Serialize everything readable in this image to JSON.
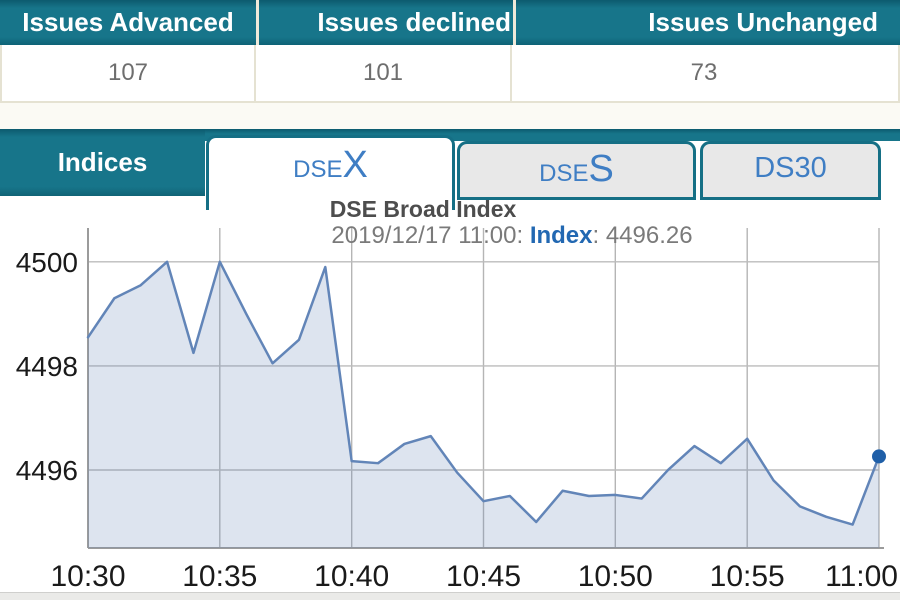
{
  "summary_table": {
    "columns": [
      {
        "header": "Issues Advanced",
        "value": "107"
      },
      {
        "header": "Issues declined",
        "value": "101"
      },
      {
        "header": "Issues Unchanged",
        "value": "73"
      }
    ]
  },
  "indices_panel": {
    "label": "Indices",
    "tabs": [
      {
        "name": "DSEX",
        "prefix": "DSE",
        "suffix": "X",
        "active": true
      },
      {
        "name": "DSES",
        "prefix": "DSE",
        "suffix": "S",
        "active": false
      },
      {
        "name": "DS30",
        "label": "DS30",
        "active": false
      }
    ]
  },
  "chart": {
    "title": "DSE Broad Index",
    "subtitle_prefix": "2019/12/17 11:00: ",
    "subtitle_label": "Index",
    "subtitle_rest": ": 4496.26"
  },
  "chart_data": {
    "type": "area",
    "title": "DSE Broad Index",
    "subtitle": "2019/12/17 11:00: Index: 4496.26",
    "x": [
      "10:30",
      "10:31",
      "10:32",
      "10:33",
      "10:34",
      "10:35",
      "10:36",
      "10:37",
      "10:38",
      "10:39",
      "10:40",
      "10:41",
      "10:42",
      "10:43",
      "10:44",
      "10:45",
      "10:46",
      "10:47",
      "10:48",
      "10:49",
      "10:50",
      "10:51",
      "10:52",
      "10:53",
      "10:54",
      "10:55",
      "10:56",
      "10:57",
      "10:58",
      "10:59",
      "11:00"
    ],
    "values": [
      4498.55,
      4499.3,
      4499.55,
      4500.0,
      4498.25,
      4500.0,
      4499.0,
      4498.05,
      4498.5,
      4499.9,
      4496.17,
      4496.13,
      4496.5,
      4496.65,
      4495.95,
      4495.4,
      4495.5,
      4495.0,
      4495.6,
      4495.5,
      4495.52,
      4495.45,
      4496.0,
      4496.46,
      4496.13,
      4496.6,
      4495.8,
      4495.3,
      4495.1,
      4494.95,
      4496.26
    ],
    "xticks": [
      "10:30",
      "10:35",
      "10:40",
      "10:45",
      "10:50",
      "10:55",
      "11:00"
    ],
    "yticks": [
      4496,
      4498,
      4500
    ],
    "ylim": [
      4494.5,
      4500.65
    ],
    "xlabel": "",
    "ylabel": "",
    "grid": true,
    "legend_position": "none",
    "line_color": "#6285b8",
    "fill_color": "rgba(98,133,184,0.22)",
    "marker_color": "#1f5fa8",
    "last_point": {
      "x": "11:00",
      "y": 4496.26
    }
  },
  "colors": {
    "teal": "#17758a",
    "teal_dark": "#0c5a6e",
    "tab_text_blue": "#3f7ec4",
    "index_label_blue": "#2268b2",
    "header_text": "#ffffff",
    "value_text": "#6e6e6e",
    "grid_line": "#bcbcbc",
    "axis_line": "#9b9b9b"
  }
}
